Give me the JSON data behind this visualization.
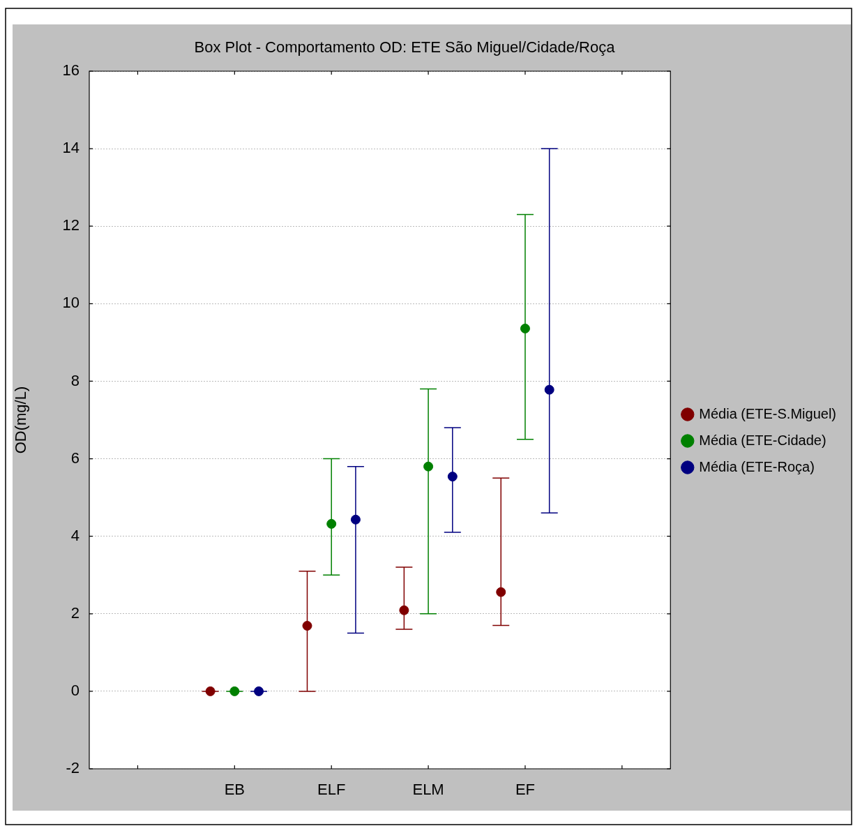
{
  "chart_data": {
    "type": "scatter",
    "title": "Box Plot - Comportamento OD: ETE São Miguel/Cidade/Roça",
    "ylabel": "OD(mg/L)",
    "categories": [
      null,
      null,
      null,
      null,
      null,
      null,
      "EB",
      null,
      null,
      null,
      "ELF",
      null,
      null,
      null,
      "ELM",
      null,
      null,
      null,
      "EF",
      null,
      null,
      null,
      null,
      null,
      null
    ],
    "ylim": [
      -2,
      16
    ],
    "yticks": [
      -2,
      0,
      2,
      4,
      6,
      8,
      10,
      12,
      14,
      16
    ],
    "grid": "y",
    "legend": "right",
    "marker": "circle",
    "series": [
      {
        "name": "Média (ETE-S.Miguel)",
        "color": "#800000",
        "values": [
          null,
          null,
          null,
          null,
          null,
          0,
          null,
          null,
          null,
          1.69,
          null,
          null,
          null,
          2.09,
          null,
          null,
          null,
          2.56,
          null,
          null,
          null,
          null,
          null,
          null,
          null
        ],
        "errors": [
          null,
          null,
          null,
          null,
          null,
          [
            0,
            0
          ],
          null,
          null,
          null,
          [
            0,
            3.1
          ],
          null,
          null,
          null,
          [
            1.6,
            3.2
          ],
          null,
          null,
          null,
          [
            1.7,
            5.5
          ],
          null,
          null,
          null,
          null,
          null,
          null,
          null
        ]
      },
      {
        "name": "Média (ETE-Cidade)",
        "color": "#008000",
        "values": [
          null,
          null,
          null,
          null,
          null,
          null,
          0,
          null,
          null,
          null,
          4.32,
          null,
          null,
          null,
          5.8,
          null,
          null,
          null,
          9.36,
          null,
          null,
          null,
          null,
          null,
          null
        ],
        "errors": [
          null,
          null,
          null,
          null,
          null,
          null,
          [
            0,
            0
          ],
          null,
          null,
          null,
          [
            3.0,
            6.0
          ],
          null,
          null,
          null,
          [
            2.0,
            7.8
          ],
          null,
          null,
          null,
          [
            6.5,
            12.3
          ],
          null,
          null,
          null,
          null,
          null,
          null
        ]
      },
      {
        "name": "Média (ETE-Roça)",
        "color": "#000080",
        "values": [
          null,
          null,
          null,
          null,
          null,
          null,
          null,
          0,
          null,
          null,
          null,
          4.43,
          null,
          null,
          null,
          5.54,
          null,
          null,
          null,
          7.78,
          null,
          null,
          null,
          null,
          null
        ],
        "errors": [
          null,
          null,
          null,
          null,
          null,
          null,
          null,
          [
            0,
            0
          ],
          null,
          null,
          null,
          [
            1.5,
            5.8
          ],
          null,
          null,
          null,
          [
            4.1,
            6.8
          ],
          null,
          null,
          null,
          [
            4.6,
            14.0
          ],
          null,
          null,
          null,
          null,
          null
        ]
      }
    ]
  }
}
